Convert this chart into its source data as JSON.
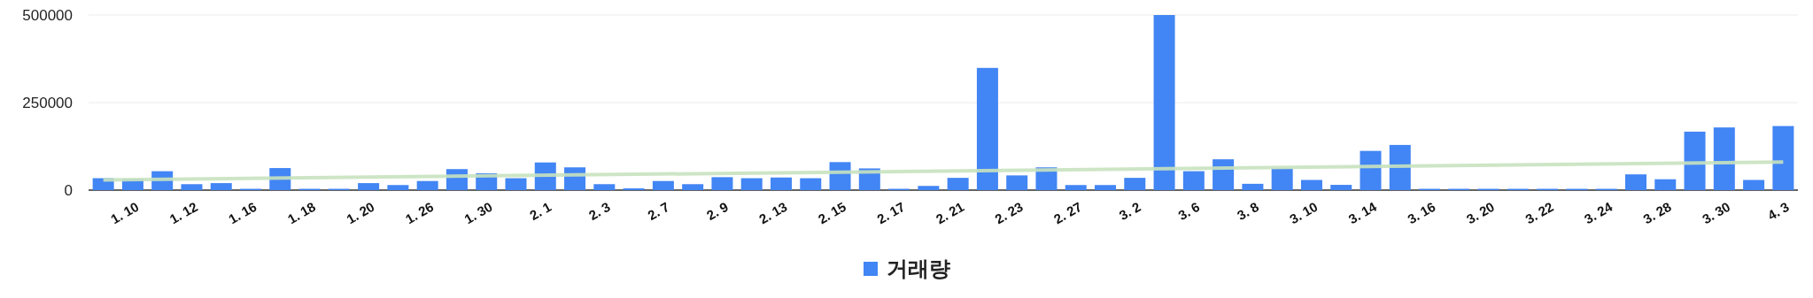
{
  "chart_data": {
    "type": "bar",
    "categories": [
      null,
      "1. 10",
      null,
      "1. 12",
      null,
      "1. 16",
      null,
      "1. 18",
      null,
      "1. 20",
      null,
      "1. 26",
      null,
      "1. 30",
      null,
      "2. 1",
      null,
      "2. 3",
      null,
      "2. 7",
      null,
      "2. 9",
      null,
      "2. 13",
      null,
      "2. 15",
      null,
      "2. 17",
      null,
      "2. 21",
      null,
      "2. 23",
      null,
      "2. 27",
      null,
      "3. 2",
      null,
      "3. 6",
      null,
      "3. 8",
      null,
      "3. 10",
      null,
      "3. 14",
      null,
      "3. 16",
      null,
      "3. 20",
      null,
      "3. 22",
      null,
      "3. 24",
      null,
      "3. 28",
      null,
      "3. 30",
      null,
      "4. 3"
    ],
    "series": [
      {
        "name": "거래량",
        "color": "#4285f4",
        "values": [
          34000,
          31500,
          54000,
          17000,
          20000,
          0,
          63000,
          3000,
          0,
          20000,
          14500,
          26000,
          60000,
          48000,
          34000,
          79000,
          65000,
          17000,
          5000,
          26000,
          17000,
          37000,
          34000,
          36000,
          34000,
          80000,
          62000,
          0,
          12000,
          35000,
          349000,
          42000,
          65000,
          14500,
          14500,
          35000,
          500000,
          54000,
          88000,
          18000,
          62000,
          29000,
          15000,
          112000,
          129000,
          0,
          0,
          0,
          0,
          0,
          0,
          0,
          45000,
          31000,
          167000,
          179000,
          29000,
          183000
        ]
      },
      {
        "type": "line",
        "color": "#c8e2bf",
        "values": [
          29000,
          null,
          null,
          null,
          null,
          null,
          null,
          null,
          null,
          null,
          null,
          null,
          null,
          null,
          null,
          null,
          null,
          null,
          null,
          null,
          null,
          null,
          null,
          null,
          null,
          null,
          null,
          null,
          null,
          null,
          null,
          null,
          null,
          null,
          null,
          null,
          null,
          null,
          null,
          null,
          null,
          null,
          null,
          null,
          null,
          null,
          null,
          null,
          null,
          null,
          null,
          null,
          null,
          null,
          null,
          null,
          null,
          80000
        ]
      }
    ],
    "ylim": [
      0,
      500000
    ],
    "yticks": [
      0,
      250000,
      500000
    ],
    "grid": "y",
    "legend": "bottom"
  }
}
